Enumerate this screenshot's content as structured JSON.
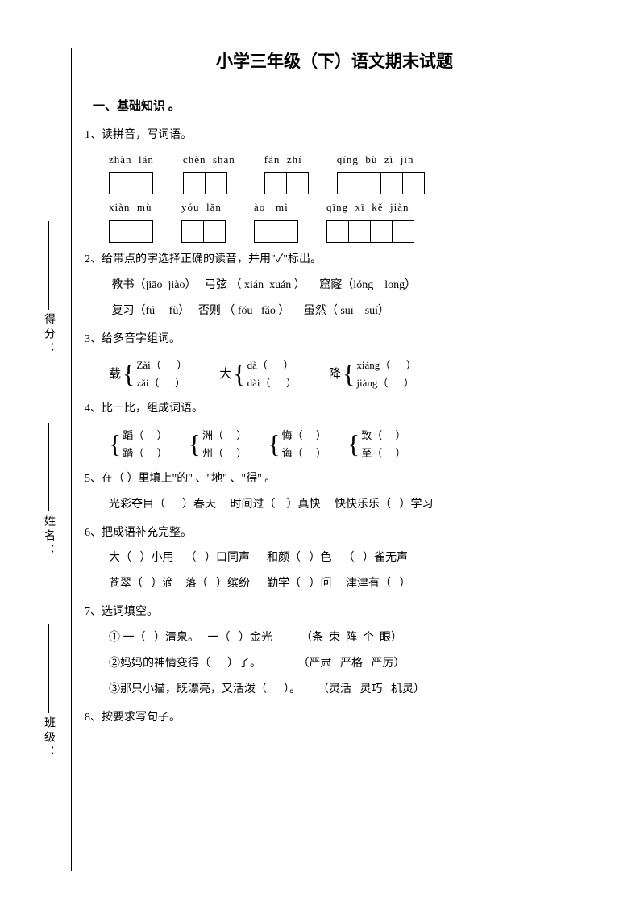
{
  "title": "小学三年级（下）语文期末试题",
  "sidebar": {
    "class": {
      "label": "班级："
    },
    "name": {
      "label": "姓名："
    },
    "score": {
      "label": "得分："
    }
  },
  "section1": "一、基础知识 。",
  "q1": {
    "prompt": "1、读拼音，写词语。",
    "row1": [
      {
        "py": "zhàn  lán",
        "n": 2
      },
      {
        "py": "chèn  shān",
        "n": 2
      },
      {
        "py": "fán  zhí",
        "n": 2
      },
      {
        "py": "qíng  bù  zì  jīn",
        "n": 4
      }
    ],
    "row2": [
      {
        "py": "xiàn  mù",
        "n": 2
      },
      {
        "py": "yóu  lǎn",
        "n": 2
      },
      {
        "py": "ào   mì",
        "n": 2
      },
      {
        "py": "qīng  xī  kě  jiàn",
        "n": 4
      }
    ]
  },
  "q2": {
    "prompt": "2、给带点的字选择正确的读音，并用\"✓\"标出。",
    "l1": " 教书（jiāo  jiào）   弓弦 （ xián  xuán ）     窟窿（lóng    long）",
    "l2": " 复习（fú     fù）   否则 （ fǒu   fǎo ）     虽然（ suī    suí）"
  },
  "q3": {
    "prompt": "3、给多音字组词。",
    "groups": [
      {
        "char": "载",
        "top": "Zài（      ）",
        "bot": "zǎi（      ）"
      },
      {
        "char": "大",
        "top": "dà（      ）",
        "bot": "dài（      ）"
      },
      {
        "char": "降",
        "top": "xiáng（      ）",
        "bot": "jiàng（      ）"
      }
    ]
  },
  "q4": {
    "prompt": "4、比一比，组成词语。",
    "groups": [
      {
        "top": "蹈（     ）",
        "bot": "踏（     ）"
      },
      {
        "top": "洲（     ）",
        "bot": "州（     ）"
      },
      {
        "top": "悔（     ）",
        "bot": "诲（     ）"
      },
      {
        "top": "致（     ）",
        "bot": "至（     ）"
      }
    ]
  },
  "q5": {
    "prompt": "5、在（      ）里填上\"的\" 、\"地\" 、\"得\" 。",
    "line": "光彩夺目（      ）春天     时间过（    ）真快     快快乐乐（   ）学习"
  },
  "q6": {
    "prompt": "6、把成语补充完整。",
    "l1": "大（   ）小用    （   ）口同声      和颜（   ）色    （   ）雀无声",
    "l2": "苍翠（   ）滴    落（   ）缤纷      勤学（   ）问     津津有（   ）"
  },
  "q7": {
    "prompt": "7、选词填空。",
    "l1": "① 一（   ）清泉。   一（   ）金光          （条  束  阵  个  眼）",
    "l2": "②妈妈的神情变得（      ）了。             （严肃   严格   严厉）",
    "l3": "③那只小猫，既漂亮，又活泼（      ）。      （灵活   灵巧   机灵）"
  },
  "q8": {
    "prompt": "8、按要求写句子。"
  },
  "colors": {
    "text": "#000000",
    "background": "#ffffff",
    "border": "#000000"
  }
}
